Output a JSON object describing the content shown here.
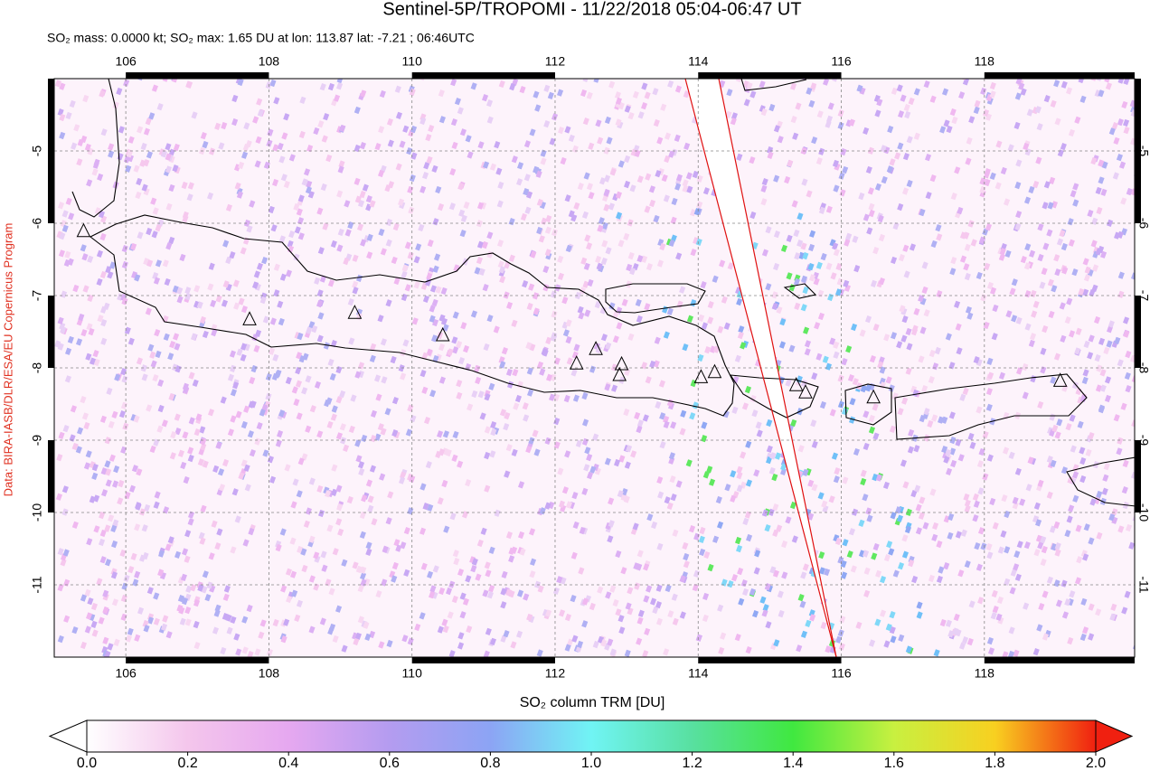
{
  "title": "Sentinel-5P/TROPOMI - 11/22/2018 05:04-06:47 UT",
  "subtitle": "SO₂ mass: 0.0000 kt; SO₂ max: 1.65 DU at lon: 113.87 lat: -7.21 ; 06:46UTC",
  "credit": "Data: BIRA-IASB/DLR/ESA/EU Copernicus Program",
  "map": {
    "xlim": [
      105,
      120.1
    ],
    "ylim": [
      -12,
      -4
    ],
    "xticks": [
      106,
      108,
      110,
      112,
      114,
      116,
      118
    ],
    "yticks": [
      -5,
      -6,
      -7,
      -8,
      -9,
      -10,
      -11
    ],
    "grid": true,
    "volcanoes": [
      {
        "lon": 105.41,
        "lat": -6.11
      },
      {
        "lon": 107.73,
        "lat": -7.33
      },
      {
        "lon": 109.2,
        "lat": -7.24
      },
      {
        "lon": 110.43,
        "lat": -7.55
      },
      {
        "lon": 112.3,
        "lat": -7.94
      },
      {
        "lon": 112.57,
        "lat": -7.74
      },
      {
        "lon": 112.93,
        "lat": -7.95
      },
      {
        "lon": 112.9,
        "lat": -8.1
      },
      {
        "lon": 114.04,
        "lat": -8.13
      },
      {
        "lon": 114.23,
        "lat": -8.06
      },
      {
        "lon": 115.37,
        "lat": -8.24
      },
      {
        "lon": 115.5,
        "lat": -8.34
      },
      {
        "lon": 116.45,
        "lat": -8.41
      },
      {
        "lon": 119.06,
        "lat": -8.18
      }
    ]
  },
  "colorbar": {
    "label": "SO₂ column TRM [DU]",
    "range": [
      0,
      2
    ],
    "ticks": [
      {
        "value": 0,
        "label": "0.0"
      },
      {
        "value": 0.2,
        "label": "0.2"
      },
      {
        "value": 0.4,
        "label": "0.4"
      },
      {
        "value": 0.6,
        "label": "0.6"
      },
      {
        "value": 0.8,
        "label": "0.8"
      },
      {
        "value": 1,
        "label": "1.0"
      },
      {
        "value": 1.2,
        "label": "1.2"
      },
      {
        "value": 1.4,
        "label": "1.4"
      },
      {
        "value": 1.6,
        "label": "1.6"
      },
      {
        "value": 1.8,
        "label": "1.8"
      },
      {
        "value": 2,
        "label": "2.0"
      }
    ],
    "colors": [
      "#ffffff",
      "#f4c6ec",
      "#e6a8f0",
      "#b49cf0",
      "#8ca4f4",
      "#70f4f4",
      "#58e0a0",
      "#40e840",
      "#c8f040",
      "#f8d020",
      "#f02010"
    ]
  }
}
